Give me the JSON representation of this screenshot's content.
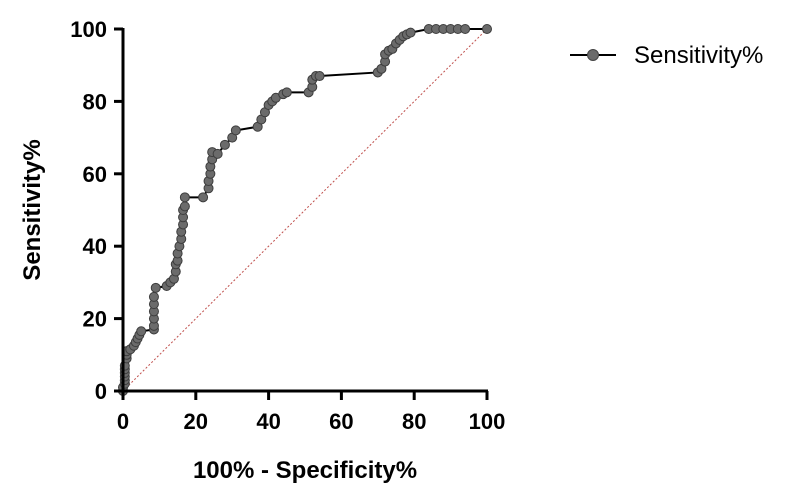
{
  "chart_data": {
    "type": "line",
    "title": "",
    "xlabel": "100% - Specificity%",
    "ylabel": "Sensitivity%",
    "xlim": [
      0,
      100
    ],
    "ylim": [
      0,
      100
    ],
    "x_ticks": [
      "0",
      "20",
      "40",
      "60",
      "80",
      "100"
    ],
    "y_ticks": [
      "0",
      "20",
      "40",
      "60",
      "80",
      "100"
    ],
    "grid": false,
    "legend_position": "top-right",
    "colors": {
      "series": "#000000",
      "marker_fill": "#6b6b6b",
      "reference": "#c0504d"
    },
    "series": [
      {
        "name": "Sensitivity%",
        "points": [
          [
            0,
            0
          ],
          [
            0,
            1
          ],
          [
            0.5,
            2
          ],
          [
            0.5,
            3
          ],
          [
            0.5,
            4
          ],
          [
            0.5,
            5
          ],
          [
            0.5,
            6
          ],
          [
            0.5,
            7
          ],
          [
            1,
            9
          ],
          [
            1,
            10
          ],
          [
            1,
            11
          ],
          [
            2,
            11.5
          ],
          [
            3,
            12.5
          ],
          [
            3.5,
            13.5
          ],
          [
            4,
            14.5
          ],
          [
            4.5,
            15.5
          ],
          [
            5,
            16.5
          ],
          [
            8.5,
            17
          ],
          [
            8.5,
            18
          ],
          [
            8.5,
            20
          ],
          [
            8.5,
            22
          ],
          [
            8.5,
            24
          ],
          [
            8.5,
            26
          ],
          [
            9,
            28.5
          ],
          [
            12,
            29
          ],
          [
            13,
            30
          ],
          [
            14,
            31
          ],
          [
            14.5,
            33
          ],
          [
            14.5,
            35
          ],
          [
            15,
            36
          ],
          [
            15,
            38
          ],
          [
            15.5,
            40
          ],
          [
            16,
            42
          ],
          [
            16,
            44
          ],
          [
            16.5,
            46
          ],
          [
            16.5,
            48
          ],
          [
            16.5,
            50
          ],
          [
            17,
            51
          ],
          [
            17,
            53.5
          ],
          [
            22,
            53.5
          ],
          [
            23.5,
            56
          ],
          [
            23.5,
            58
          ],
          [
            24,
            60
          ],
          [
            24,
            62
          ],
          [
            24.5,
            64
          ],
          [
            24.5,
            66
          ],
          [
            26,
            65.5
          ],
          [
            28,
            68
          ],
          [
            30,
            70
          ],
          [
            31,
            72
          ],
          [
            37,
            73
          ],
          [
            38,
            75
          ],
          [
            39,
            77
          ],
          [
            40,
            79
          ],
          [
            41,
            80
          ],
          [
            42,
            81
          ],
          [
            44,
            82
          ],
          [
            45,
            82.5
          ],
          [
            51,
            82.5
          ],
          [
            52,
            84
          ],
          [
            52,
            86
          ],
          [
            53,
            87
          ],
          [
            54,
            87
          ],
          [
            70,
            88
          ],
          [
            71,
            89
          ],
          [
            72,
            91
          ],
          [
            72,
            93
          ],
          [
            73,
            94
          ],
          [
            74,
            94.5
          ],
          [
            75,
            96
          ],
          [
            76,
            97
          ],
          [
            77,
            98
          ],
          [
            78,
            98.5
          ],
          [
            79,
            99
          ],
          [
            84,
            100
          ],
          [
            86,
            100
          ],
          [
            88,
            100
          ],
          [
            90,
            100
          ],
          [
            92,
            100
          ],
          [
            94,
            100
          ],
          [
            100,
            100
          ]
        ]
      }
    ],
    "reference_line": [
      [
        0,
        0
      ],
      [
        100,
        100
      ]
    ]
  }
}
